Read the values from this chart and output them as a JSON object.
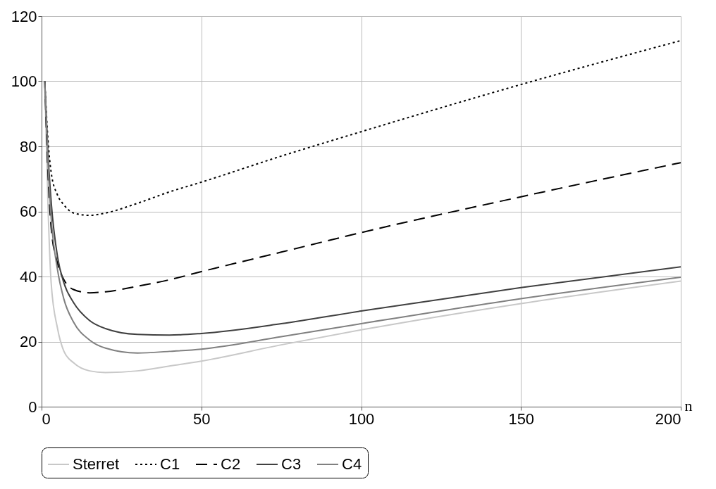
{
  "chart_data": {
    "type": "line",
    "xlabel": "n",
    "x": [
      1,
      2,
      3,
      5,
      7,
      10,
      15,
      20,
      30,
      40,
      50,
      75,
      100,
      150,
      200
    ],
    "xlim": [
      0,
      200
    ],
    "xticks": [
      0,
      50,
      100,
      150,
      200
    ],
    "ylim": [
      0,
      120
    ],
    "yticks": [
      0,
      20,
      40,
      60,
      80,
      100,
      120
    ],
    "grid": true,
    "legend": "bottom",
    "series": [
      {
        "name": "Sterret",
        "color": "#c8c8c8",
        "line_style": "solid",
        "values": [
          100,
          62,
          38,
          24,
          17,
          13.5,
          11,
          10.5,
          11,
          12.5,
          14,
          19,
          23.6,
          31.7,
          38.6
        ]
      },
      {
        "name": "C1",
        "color": "#000000",
        "line_style": "dotted",
        "values": [
          100,
          82,
          72,
          65,
          62,
          59.5,
          58.8,
          59.5,
          62.5,
          66,
          69,
          77,
          84.5,
          99,
          112.5
        ]
      },
      {
        "name": "C2",
        "color": "#000000",
        "line_style": "dashed",
        "values": [
          100,
          72,
          55,
          44,
          39,
          36,
          35,
          35.3,
          37,
          39,
          41.5,
          47.5,
          53.5,
          64.5,
          75
        ]
      },
      {
        "name": "C3",
        "color": "#404040",
        "line_style": "solid",
        "values": [
          100,
          78,
          63,
          46,
          38,
          32,
          26.5,
          24,
          22.2,
          22,
          22.5,
          25.5,
          29.4,
          36.6,
          43
        ]
      },
      {
        "name": "C4",
        "color": "#808080",
        "line_style": "solid",
        "values": [
          100,
          75,
          58,
          42,
          33,
          26,
          20.5,
          18,
          16.5,
          17,
          17.7,
          21.5,
          25.5,
          33.2,
          39.8
        ]
      }
    ]
  }
}
